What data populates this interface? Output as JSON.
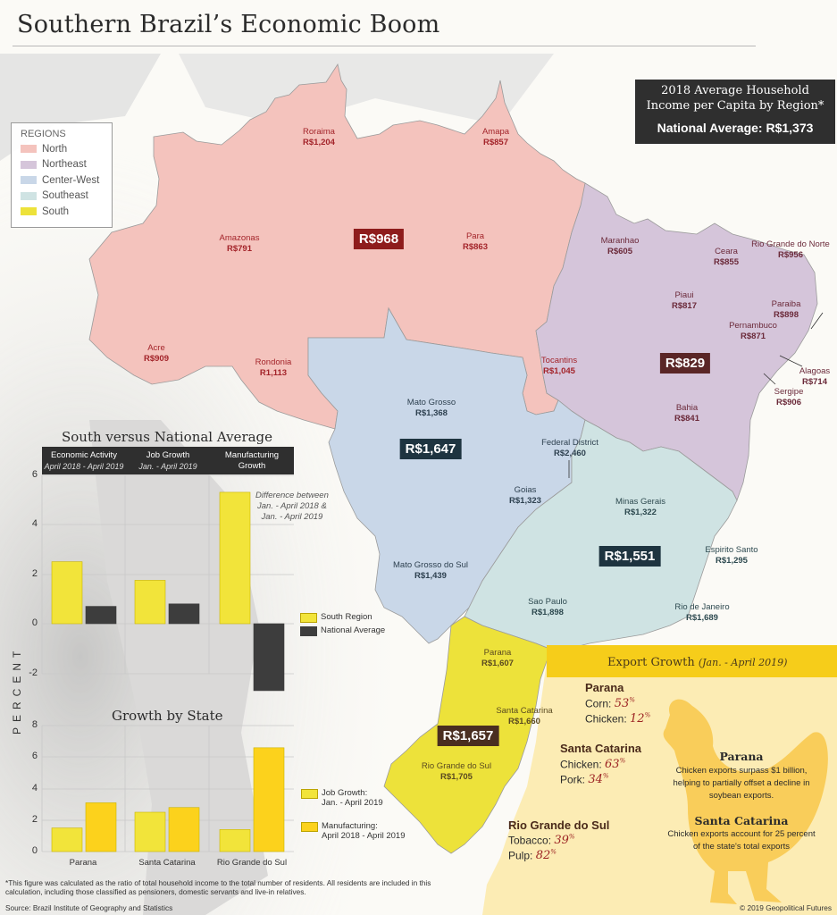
{
  "title": "Southern Brazil’s Economic Boom",
  "legend": {
    "heading": "REGIONS",
    "items": [
      {
        "label": "North",
        "color": "#f4c3bd"
      },
      {
        "label": "Northeast",
        "color": "#d5c5da"
      },
      {
        "label": "Center-West",
        "color": "#c9d7e8"
      },
      {
        "label": "Southeast",
        "color": "#cfe3e3"
      },
      {
        "label": "South",
        "color": "#ede23a"
      }
    ]
  },
  "info_box": {
    "line1": "2018 Average Household",
    "line2": "Income per Capita by Region*",
    "national_average": "National Average: R$1,373"
  },
  "regions": {
    "north": {
      "badge": "R$968",
      "badge_color": "#8e1c1c"
    },
    "northeast": {
      "badge": "R$829",
      "badge_color": "#5a2626"
    },
    "center_west": {
      "badge": "R$1,647",
      "badge_color": "#1e3440"
    },
    "southeast": {
      "badge": "R$1,551",
      "badge_color": "#1e3440"
    },
    "south": {
      "badge": "R$1,657",
      "badge_color": "#4a2e20"
    }
  },
  "states": [
    {
      "name": "Roraima",
      "value": "R$1,204",
      "region": "n"
    },
    {
      "name": "Amapa",
      "value": "R$857",
      "region": "n"
    },
    {
      "name": "Amazonas",
      "value": "R$791",
      "region": "n"
    },
    {
      "name": "Para",
      "value": "R$863",
      "region": "n"
    },
    {
      "name": "Acre",
      "value": "R$909",
      "region": "n"
    },
    {
      "name": "Rondonia",
      "value": "R1,113",
      "region": "n"
    },
    {
      "name": "Tocantins",
      "value": "R$1,045",
      "region": "n"
    },
    {
      "name": "Maranhao",
      "value": "R$605",
      "region": "ne"
    },
    {
      "name": "Ceara",
      "value": "R$855",
      "region": "ne"
    },
    {
      "name": "Rio Grande do Norte",
      "value": "R$956",
      "region": "ne"
    },
    {
      "name": "Piaui",
      "value": "R$817",
      "region": "ne"
    },
    {
      "name": "Paraiba",
      "value": "R$898",
      "region": "ne"
    },
    {
      "name": "Pernambuco",
      "value": "R$871",
      "region": "ne"
    },
    {
      "name": "Alagoas",
      "value": "R$714",
      "region": "ne"
    },
    {
      "name": "Sergipe",
      "value": "R$906",
      "region": "ne"
    },
    {
      "name": "Bahia",
      "value": "R$841",
      "region": "ne"
    },
    {
      "name": "Mato Grosso",
      "value": "R$1,368",
      "region": "cw"
    },
    {
      "name": "Federal District",
      "value": "R$2,460",
      "region": "cw"
    },
    {
      "name": "Goias",
      "value": "R$1,323",
      "region": "cw"
    },
    {
      "name": "Mato Grosso do Sul",
      "value": "R$1,439",
      "region": "cw"
    },
    {
      "name": "Minas Gerais",
      "value": "R$1,322",
      "region": "se"
    },
    {
      "name": "Espirito Santo",
      "value": "R$1,295",
      "region": "se"
    },
    {
      "name": "Sao Paulo",
      "value": "R$1,898",
      "region": "se"
    },
    {
      "name": "Rio de Janeiro",
      "value": "R$1,689",
      "region": "se"
    },
    {
      "name": "Parana",
      "value": "R$1,607",
      "region": "s"
    },
    {
      "name": "Santa Catarina",
      "value": "R$1,660",
      "region": "s"
    },
    {
      "name": "Rio Grande do Sul",
      "value": "R$1,705",
      "region": "s"
    }
  ],
  "chart_data": [
    {
      "type": "bar",
      "title": "South versus National Average",
      "categories": [
        "Economic Activity",
        "Job Growth",
        "Manufacturing Growth"
      ],
      "category_subtitles": [
        "April 2018 - April 2019",
        "Jan. - April 2019",
        ""
      ],
      "series": [
        {
          "name": "South Region",
          "color": "#f2e43a",
          "values": [
            2.5,
            1.75,
            5.3
          ]
        },
        {
          "name": "National Average",
          "color": "#3d3d3d",
          "values": [
            0.7,
            0.8,
            -2.7
          ]
        }
      ],
      "annotation": "Difference between Jan. - April 2018 & Jan. - April 2019",
      "ylabel": "PERCENT",
      "yticks": [
        6,
        4,
        2,
        0,
        -2
      ],
      "ylim": [
        -2.7,
        6
      ],
      "grid": true,
      "legend_position": "right"
    },
    {
      "type": "bar",
      "title": "Growth by State",
      "categories": [
        "Parana",
        "Santa Catarina",
        "Rio Grande do Sul"
      ],
      "series": [
        {
          "name": "Job Growth: Jan. - April 2019",
          "color": "#f2e43a",
          "values": [
            1.5,
            2.5,
            1.4
          ]
        },
        {
          "name": "Manufacturing: April 2018 - April 2019",
          "color": "#fcd21c",
          "values": [
            3.1,
            2.8,
            6.6
          ]
        }
      ],
      "ylabel": "PERCENT",
      "yticks": [
        8,
        6,
        4,
        2,
        0
      ],
      "ylim": [
        0,
        8
      ],
      "grid": true,
      "legend_position": "right"
    }
  ],
  "chart1": {
    "title": "South versus National Average",
    "cols": [
      {
        "label": "Economic Activity",
        "sub": "April 2018 - April 2019"
      },
      {
        "label": "Job Growth",
        "sub": "Jan. - April 2019"
      },
      {
        "label": "Manufacturing",
        "sub": "Growth"
      }
    ],
    "note_l1": "Difference between",
    "note_l2": "Jan. - April 2018 &",
    "note_l3": "Jan. - April 2019",
    "legend_south": "South Region",
    "legend_national": "National Average",
    "ticks": [
      "6",
      "4",
      "2",
      "0",
      "-2"
    ]
  },
  "ylabel": "PERCENT",
  "chart2": {
    "title": "Growth by State",
    "ticks": [
      "8",
      "6",
      "4",
      "2",
      "0"
    ],
    "cats": [
      "Parana",
      "Santa Catarina",
      "Rio Grande do Sul"
    ],
    "legend_job_l1": "Job Growth:",
    "legend_job_l2": "Jan. - April 2019",
    "legend_mfg_l1": "Manufacturing:",
    "legend_mfg_l2": "April 2018 - April 2019"
  },
  "export": {
    "title": "Export Growth",
    "period": "(Jan. - April 2019)",
    "states": [
      {
        "name": "Parana",
        "items": [
          {
            "label": "Corn:",
            "pct": "53"
          },
          {
            "label": "Chicken:",
            "pct": "12"
          }
        ]
      },
      {
        "name": "Santa Catarina",
        "items": [
          {
            "label": "Chicken:",
            "pct": "63"
          },
          {
            "label": "Pork:",
            "pct": "34"
          }
        ]
      },
      {
        "name": "Rio Grande do Sul",
        "items": [
          {
            "label": "Tobacco:",
            "pct": "39"
          },
          {
            "label": "Pulp:",
            "pct": "82"
          }
        ]
      }
    ],
    "pct_sign": "%",
    "facts": [
      {
        "heading": "Parana",
        "text": "Chicken exports surpass $1 billion, helping to partially offset a decline in soybean exports."
      },
      {
        "heading": "Santa Catarina",
        "text": "Chicken exports account for 25 percent of the state's total exports"
      }
    ]
  },
  "footnote": "*This figure was calculated as the ratio of total household income to the total number of residents. All residents are included in this calculation, including those classified as pensioners, domestic servants and live-in relatives.",
  "source": "Source: Brazil Institute of Geography and Statistics",
  "copyright": "© 2019 Geopolitical Futures"
}
